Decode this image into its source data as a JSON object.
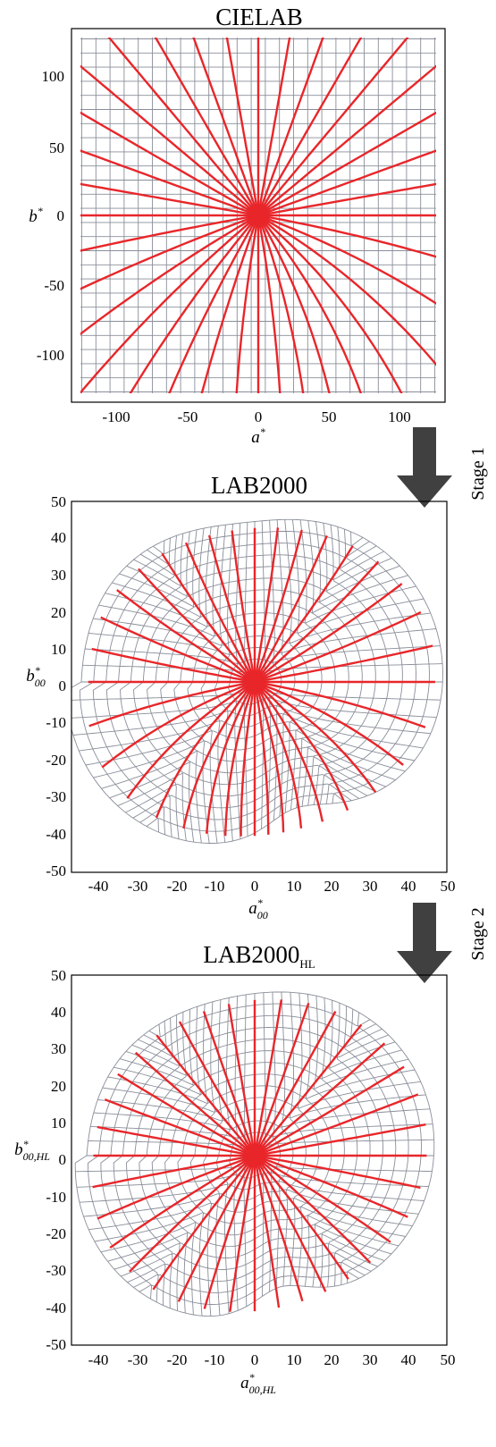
{
  "figure": {
    "panels": [
      {
        "title": "CIELAB",
        "title_sub": "",
        "xlabel": "a",
        "xlabel_sup": "*",
        "xlabel_sub": "",
        "ylabel": "b",
        "ylabel_sup": "*",
        "ylabel_sub": "",
        "xticks": [
          "-100",
          "-50",
          "0",
          "50",
          "100"
        ],
        "yticks": [
          "100",
          "50",
          "0",
          "-50",
          "-100"
        ],
        "xlim": [
          -130,
          130
        ],
        "ylim": [
          -130,
          130
        ]
      },
      {
        "title": "LAB2000",
        "title_sub": "",
        "xlabel": "a",
        "xlabel_sup": "*",
        "xlabel_sub": "00",
        "ylabel": "b",
        "ylabel_sup": "*",
        "ylabel_sub": "00",
        "xticks": [
          "-40",
          "-30",
          "-20",
          "-10",
          "0",
          "10",
          "20",
          "30",
          "40",
          "50"
        ],
        "yticks": [
          "50",
          "40",
          "30",
          "20",
          "10",
          "0",
          "-10",
          "-20",
          "-30",
          "-40",
          "-50"
        ],
        "xlim": [
          -48,
          50
        ],
        "ylim": [
          -50,
          50
        ]
      },
      {
        "title": "LAB2000",
        "title_sub": "HL",
        "xlabel": "a",
        "xlabel_sup": "*",
        "xlabel_sub": "00,HL",
        "ylabel": "b",
        "ylabel_sup": "*",
        "ylabel_sub": "00,HL",
        "xticks": [
          "-40",
          "-30",
          "-20",
          "-10",
          "0",
          "10",
          "20",
          "30",
          "40",
          "50"
        ],
        "yticks": [
          "50",
          "40",
          "30",
          "20",
          "10",
          "0",
          "-10",
          "-20",
          "-30",
          "-40",
          "-50"
        ],
        "xlim": [
          -48,
          50
        ],
        "ylim": [
          -50,
          50
        ]
      }
    ],
    "arrows": [
      {
        "label": "Stage 1"
      },
      {
        "label": "Stage 2"
      }
    ],
    "colors": {
      "grid": "#8a8e99",
      "rays": "#e8262a",
      "arrow": "#404040"
    }
  }
}
